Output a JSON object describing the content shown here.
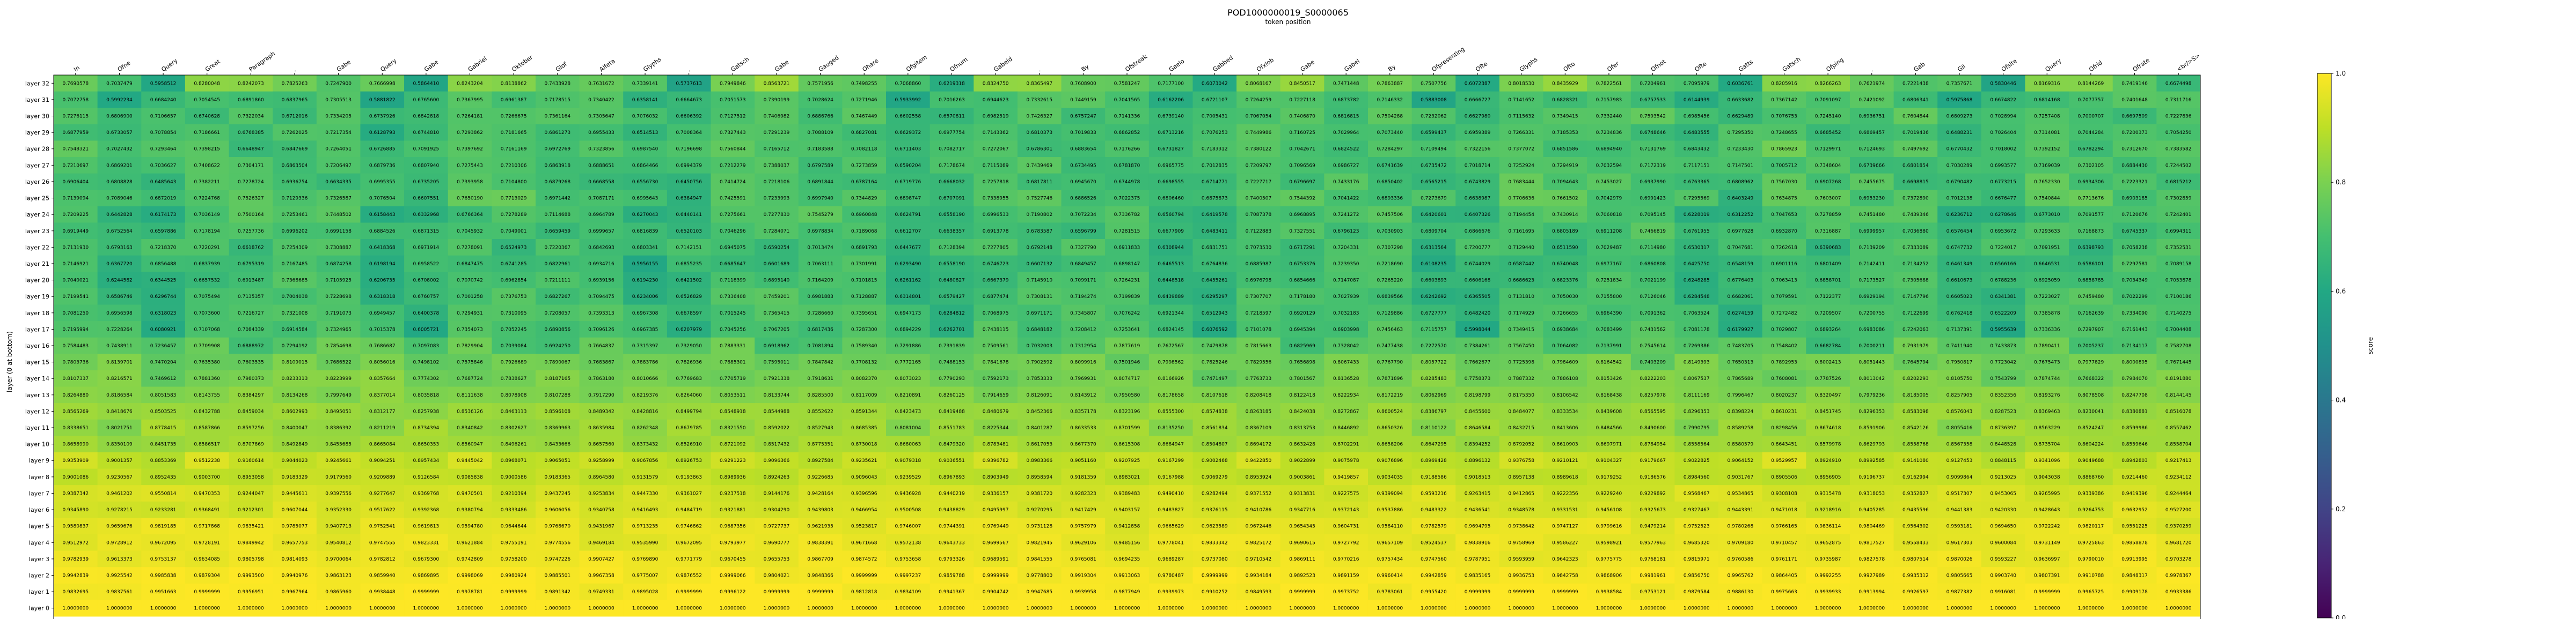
{
  "chart_data": {
    "type": "heatmap",
    "title": "POD1000000019_S0000065",
    "xlabel": "token position",
    "ylabel": "layer (0 at bottom)",
    "colorbar_label": "score",
    "colorbar_ticks": [
      "0.0",
      "0.2",
      "0.4",
      "0.6",
      "0.8",
      "1.0"
    ],
    "vmin": 0.0,
    "vmax": 1.0,
    "tokens": [
      "In",
      "Ofne",
      "Query",
      "Great",
      "Paragraph",
      "",
      "Gabe",
      "Query",
      "Gabe",
      "Gabriel",
      "Oktober",
      "Glof",
      "Alfeta",
      "Glyphs",
      "",
      "Gatsch",
      "Gabe",
      "Gauged",
      "Ohare",
      "Ofgitem",
      "Ofnum",
      "Gabeid",
      "",
      "By",
      "Ofstreak",
      "Gaelo",
      "Gabbed",
      "Ofxlob",
      "Gabe",
      "Gabel",
      "By",
      "Ofpresenting",
      "Ofte",
      "Glyphs",
      "Ofto",
      "Ofer",
      "Ofnot",
      "Ofte",
      "Gatts",
      "Gatsch",
      "Ofping",
      "",
      "Gab",
      "Gil",
      "Ofsite",
      "Query",
      "Ofrid",
      "Ofrate",
      "<br/>S>"
    ],
    "layers": [
      "layer 32",
      "layer 31",
      "layer 30",
      "layer 29",
      "layer 28",
      "layer 27",
      "layer 26",
      "layer 25",
      "layer 24",
      "layer 23",
      "layer 22",
      "layer 21",
      "layer 20",
      "layer 19",
      "layer 18",
      "layer 17",
      "layer 16",
      "layer 15",
      "layer 14",
      "layer 13",
      "layer 12",
      "layer 11",
      "layer 10",
      "layer 9",
      "layer 8",
      "layer 7",
      "layer 6",
      "layer 5",
      "layer 4",
      "layer 3",
      "layer 2",
      "layer 1",
      "layer 0"
    ],
    "row_anchors": [
      [
        0.7522519,
        0.7335746,
        0.6014582,
        0.8052262,
        0.8483075,
        0.7604188
      ],
      [
        0.7028657,
        0.6085214,
        0.6823626,
        0.7028063,
        0.7157913,
        0.7155894
      ],
      [
        0.7306419,
        0.6917265,
        0.6836573,
        0.7052484,
        0.7114256,
        0.7031672
      ],
      [
        0.7026933,
        0.6444548,
        0.7001776,
        0.7443867,
        0.6965461,
        0.7050906
      ],
      [
        0.734151,
        0.7003225,
        0.703357,
        0.7547073,
        0.6848535,
        0.7112498
      ],
      [
        0.7052862,
        0.6826283,
        0.6919217,
        0.7112643,
        0.7191638,
        0.7013454
      ],
      [
        0.6904116,
        0.6768312,
        0.6716524,
        0.7426059,
        0.7015865,
        0.7154372
      ],
      [
        0.7125173,
        0.7044614,
        0.6667371,
        0.7519869,
        0.7424264,
        0.7028543
      ],
      [
        0.7196621,
        0.6403319,
        0.6429471,
        0.7036249,
        0.7225085,
        0.7301462
      ],
      [
        0.7190054,
        0.6821463,
        0.6718363,
        0.7134626,
        0.7048223,
        0.6861475
      ],
      [
        0.7081283,
        0.6565017,
        0.7086118,
        0.7090235,
        0.6603561,
        0.7065492
      ],
      [
        0.7087658,
        0.6201213,
        0.678605,
        0.6767972,
        0.6570593,
        0.7061862
      ],
      [
        0.7091154,
        0.6401321,
        0.6534621,
        0.6906264,
        0.6900235,
        0.7172452
      ],
      [
        0.7023951,
        0.6462041,
        0.6516462,
        0.7115446,
        0.7226051,
        0.7008241
      ],
      [
        0.7158919,
        0.6875832,
        0.6460594,
        0.7146227,
        0.7126498,
        0.7157305
      ],
      [
        0.7232675,
        0.7012096,
        0.6085524,
        0.7228659,
        0.7065709,
        0.7000182
      ],
      [
        0.7704457,
        0.7459111,
        0.7263596,
        0.7725397,
        0.6904315,
        0.7117352
      ],
      [
        0.7588137,
        0.7951372,
        0.7621254,
        0.7709613,
        0.7807425,
        0.8028992
      ],
      [
        0.8017617,
        0.821609,
        0.7671985,
        0.7711977,
        0.7809395,
        0.8045126
      ],
      [
        0.8114227,
        0.8176458,
        0.8201467,
        0.8013627,
        0.8203411,
        0.8100227
      ],
      [
        0.8425552,
        0.8419533,
        0.8455238,
        0.8461226,
        0.8412124,
        0.8448253
      ],
      [
        0.8512968,
        0.8173819,
        0.8668002,
        0.8413946,
        0.8491135,
        0.8511965
      ],
      [
        0.8612034,
        0.8502483,
        0.8564238,
        0.8612654,
        0.8663121,
        0.8602416
      ],
      [
        0.9201519,
        0.9032645,
        0.896758,
        0.941019,
        0.9064802,
        0.9001535
      ],
      [
        0.9092526,
        0.9103501,
        0.9087788,
        0.9022032,
        0.8845444,
        0.9327069
      ],
      [
        0.9301947,
        0.9437076,
        0.9392561,
        0.9318477,
        0.9302617,
        0.9316558
      ],
      [
        0.9451532,
        0.9385811,
        0.9364214,
        0.9396723,
        0.9312019,
        0.9513226
      ],
      [
        0.9461012,
        0.9646596,
        0.9731269,
        0.9703629,
        0.9706409,
        0.9685418
      ],
      [
        0.9601768,
        0.9654861,
        0.9703325,
        0.9712034,
        0.9714589,
        0.9726711
      ],
      [
        0.9823671,
        0.9739812,
        0.9687251,
        0.9701934,
        0.9766237,
        0.9855121
      ],
      [
        0.9927208,
        0.9893615,
        0.9902834,
        0.9903216,
        0.9887341,
        0.9910712
      ],
      [
        0.9863152,
        0.9944207,
        0.9952175,
        0.9940599,
        0.9936848,
        0.9949751
      ],
      [
        1.0,
        1.0,
        1.0,
        1.0,
        1.0,
        1.0
      ]
    ],
    "highlight": {
      "row": "layer 32",
      "token": "<br/>S>",
      "value": 0.6674498
    },
    "value_format": "7 decimal places"
  },
  "colors": {
    "viridis": [
      "#440154",
      "#482475",
      "#414487",
      "#355f8d",
      "#2a788e",
      "#21918c",
      "#22a884",
      "#44bf70",
      "#7ad151",
      "#bddf26",
      "#fde725"
    ],
    "text": "#000000",
    "frame": "#000000"
  }
}
